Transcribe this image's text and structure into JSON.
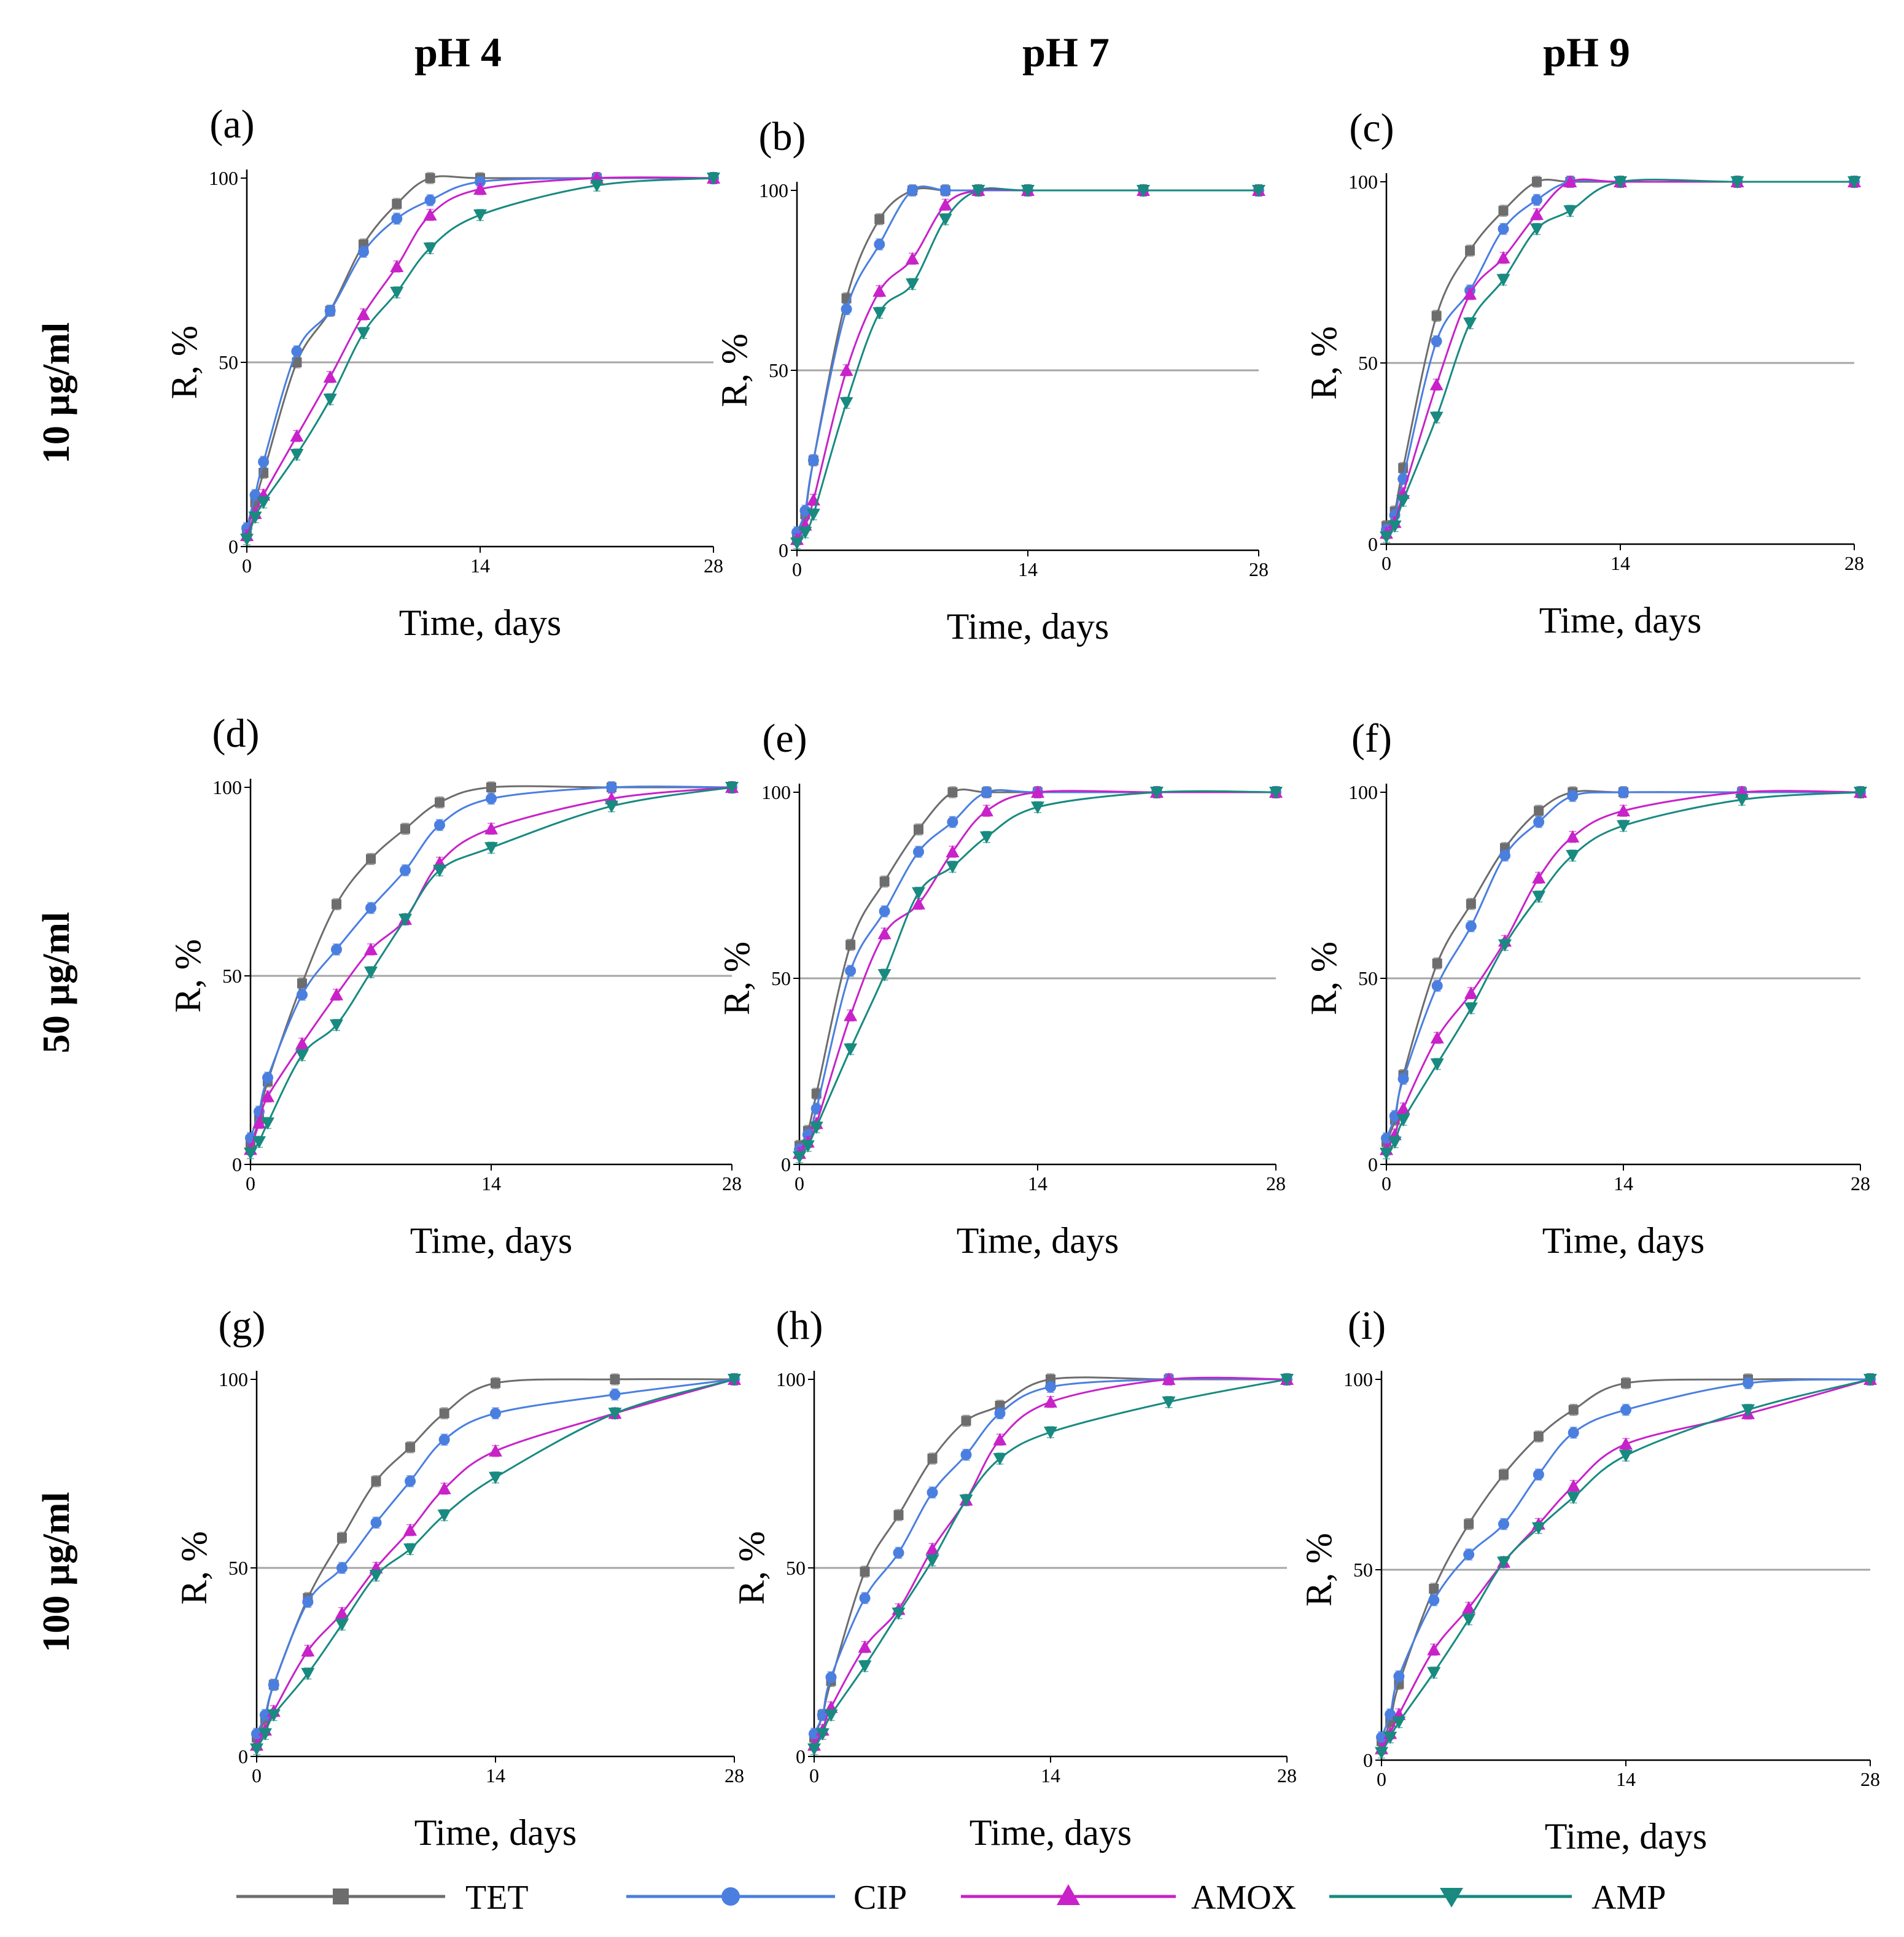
{
  "figure": {
    "column_headers": [
      "pH 4",
      "pH 7",
      "pH 9"
    ],
    "row_headers": [
      "10 µg/ml",
      "50 µg/ml",
      "100 µg/ml"
    ]
  },
  "legend": [
    "TET",
    "CIP",
    "AMOX",
    "AMP"
  ],
  "colors": {
    "TET": "#6d6d6d",
    "CIP": "#4a7fe0",
    "AMOX": "#c822c8",
    "AMP": "#188a80",
    "reference_line": "#a6a6a6"
  },
  "chart_data": [
    {
      "panel": "(a)",
      "type": "line",
      "xlabel": "Time, days",
      "ylabel": "R, %",
      "xlim": [
        0,
        28
      ],
      "ylim": [
        0,
        100
      ],
      "xticks": [
        "0",
        "14",
        "28"
      ],
      "yticks": [
        "0",
        "50",
        "100"
      ],
      "reference_y": 50,
      "x": [
        0,
        0.5,
        1,
        3,
        5,
        7,
        9,
        11,
        14,
        21,
        28
      ],
      "series": [
        {
          "name": "TET",
          "values": [
            4,
            12,
            20,
            50,
            64,
            82,
            93,
            100,
            100,
            100,
            100
          ]
        },
        {
          "name": "CIP",
          "values": [
            5,
            14,
            23,
            53,
            64,
            80,
            89,
            94,
            99,
            100,
            100
          ]
        },
        {
          "name": "AMOX",
          "values": [
            3,
            9,
            14,
            30,
            46,
            63,
            76,
            90,
            97,
            100,
            100
          ]
        },
        {
          "name": "AMP",
          "values": [
            2,
            8,
            12,
            25,
            40,
            58,
            69,
            81,
            90,
            98,
            100
          ]
        }
      ]
    },
    {
      "panel": "(b)",
      "type": "line",
      "xlabel": "Time, days",
      "ylabel": "R, %",
      "xlim": [
        0,
        28
      ],
      "ylim": [
        0,
        100
      ],
      "xticks": [
        "0",
        "14",
        "28"
      ],
      "yticks": [
        "0",
        "50",
        "100"
      ],
      "reference_y": 50,
      "x": [
        0,
        0.5,
        1,
        3,
        5,
        7,
        9,
        11,
        14,
        21,
        28
      ],
      "series": [
        {
          "name": "TET",
          "values": [
            4,
            10,
            25,
            70,
            92,
            100,
            100,
            100,
            100,
            100,
            100
          ]
        },
        {
          "name": "CIP",
          "values": [
            5,
            11,
            25,
            67,
            85,
            100,
            100,
            100,
            100,
            100,
            100
          ]
        },
        {
          "name": "AMOX",
          "values": [
            3,
            7,
            14,
            50,
            72,
            81,
            96,
            100,
            100,
            100,
            100
          ]
        },
        {
          "name": "AMP",
          "values": [
            2,
            5,
            10,
            41,
            66,
            74,
            92,
            100,
            100,
            100,
            100
          ]
        }
      ]
    },
    {
      "panel": "(c)",
      "type": "line",
      "xlabel": "Time, days",
      "ylabel": "R, %",
      "xlim": [
        0,
        28
      ],
      "ylim": [
        0,
        100
      ],
      "xticks": [
        "0",
        "14",
        "28"
      ],
      "yticks": [
        "0",
        "50",
        "100"
      ],
      "reference_y": 50,
      "x": [
        0,
        0.5,
        1,
        3,
        5,
        7,
        9,
        11,
        14,
        21,
        28
      ],
      "series": [
        {
          "name": "TET",
          "values": [
            5,
            9,
            21,
            63,
            81,
            92,
            100,
            100,
            100,
            100,
            100
          ]
        },
        {
          "name": "CIP",
          "values": [
            4,
            8,
            18,
            56,
            70,
            87,
            95,
            100,
            100,
            100,
            100
          ]
        },
        {
          "name": "AMOX",
          "values": [
            3,
            6,
            14,
            44,
            69,
            79,
            91,
            100,
            100,
            100,
            100
          ]
        },
        {
          "name": "AMP",
          "values": [
            2,
            5,
            12,
            35,
            61,
            73,
            87,
            92,
            100,
            100,
            100
          ]
        }
      ]
    },
    {
      "panel": "(d)",
      "type": "line",
      "xlabel": "Time, days",
      "ylabel": "R, %",
      "xlim": [
        0,
        28
      ],
      "ylim": [
        0,
        100
      ],
      "xticks": [
        "0",
        "14",
        "28"
      ],
      "yticks": [
        "0",
        "50",
        "100"
      ],
      "reference_y": 50,
      "x": [
        0,
        0.5,
        1,
        3,
        5,
        7,
        9,
        11,
        14,
        21,
        28
      ],
      "series": [
        {
          "name": "TET",
          "values": [
            5,
            12,
            22,
            48,
            69,
            81,
            89,
            96,
            100,
            100,
            100
          ]
        },
        {
          "name": "CIP",
          "values": [
            7,
            14,
            23,
            45,
            57,
            68,
            78,
            90,
            97,
            100,
            100
          ]
        },
        {
          "name": "AMOX",
          "values": [
            4,
            11,
            18,
            32,
            45,
            57,
            65,
            80,
            89,
            97,
            100
          ]
        },
        {
          "name": "AMP",
          "values": [
            3,
            6,
            11,
            29,
            37,
            51,
            65,
            78,
            84,
            95,
            100
          ]
        }
      ]
    },
    {
      "panel": "(e)",
      "type": "line",
      "xlabel": "Time, days",
      "ylabel": "R, %",
      "xlim": [
        0,
        28
      ],
      "ylim": [
        0,
        100
      ],
      "xticks": [
        "0",
        "14",
        "28"
      ],
      "yticks": [
        "0",
        "50",
        "100"
      ],
      "reference_y": 50,
      "x": [
        0,
        0.5,
        1,
        3,
        5,
        7,
        9,
        11,
        14,
        21,
        28
      ],
      "series": [
        {
          "name": "TET",
          "values": [
            5,
            9,
            19,
            59,
            76,
            90,
            100,
            100,
            100,
            100,
            100
          ]
        },
        {
          "name": "CIP",
          "values": [
            4,
            8,
            15,
            52,
            68,
            84,
            92,
            100,
            100,
            100,
            100
          ]
        },
        {
          "name": "AMOX",
          "values": [
            3,
            6,
            11,
            40,
            62,
            70,
            84,
            95,
            100,
            100,
            100
          ]
        },
        {
          "name": "AMP",
          "values": [
            2,
            5,
            10,
            31,
            51,
            73,
            80,
            88,
            96,
            100,
            100
          ]
        }
      ]
    },
    {
      "panel": "(f)",
      "type": "line",
      "xlabel": "Time, days",
      "ylabel": "R, %",
      "xlim": [
        0,
        28
      ],
      "ylim": [
        0,
        100
      ],
      "xticks": [
        "0",
        "14",
        "28"
      ],
      "yticks": [
        "0",
        "50",
        "100"
      ],
      "reference_y": 50,
      "x": [
        0,
        0.5,
        1,
        3,
        5,
        7,
        9,
        11,
        14,
        21,
        28
      ],
      "series": [
        {
          "name": "TET",
          "values": [
            6,
            12,
            24,
            54,
            70,
            85,
            95,
            100,
            100,
            100,
            100
          ]
        },
        {
          "name": "CIP",
          "values": [
            7,
            13,
            23,
            48,
            64,
            83,
            92,
            99,
            100,
            100,
            100
          ]
        },
        {
          "name": "AMOX",
          "values": [
            4,
            8,
            15,
            34,
            46,
            60,
            77,
            88,
            95,
            100,
            100
          ]
        },
        {
          "name": "AMP",
          "values": [
            3,
            6,
            12,
            27,
            42,
            59,
            72,
            83,
            91,
            98,
            100
          ]
        }
      ]
    },
    {
      "panel": "(g)",
      "type": "line",
      "xlabel": "Time, days",
      "ylabel": "R, %",
      "xlim": [
        0,
        28
      ],
      "ylim": [
        0,
        100
      ],
      "xticks": [
        "0",
        "14",
        "28"
      ],
      "yticks": [
        "0",
        "50",
        "100"
      ],
      "reference_y": 50,
      "x": [
        0,
        0.5,
        1,
        3,
        5,
        7,
        9,
        11,
        14,
        21,
        28
      ],
      "series": [
        {
          "name": "TET",
          "values": [
            5,
            10,
            19,
            42,
            58,
            73,
            82,
            91,
            99,
            100,
            100
          ]
        },
        {
          "name": "CIP",
          "values": [
            6,
            11,
            19,
            41,
            50,
            62,
            73,
            84,
            91,
            96,
            100
          ]
        },
        {
          "name": "AMOX",
          "values": [
            3,
            7,
            12,
            28,
            38,
            50,
            60,
            71,
            81,
            91,
            100
          ]
        },
        {
          "name": "AMP",
          "values": [
            2,
            6,
            11,
            22,
            35,
            48,
            55,
            64,
            74,
            91,
            100
          ]
        }
      ]
    },
    {
      "panel": "(h)",
      "type": "line",
      "xlabel": "Time, days",
      "ylabel": "R, %",
      "xlim": [
        0,
        28
      ],
      "ylim": [
        0,
        100
      ],
      "xticks": [
        "0",
        "14",
        "28"
      ],
      "yticks": [
        "0",
        "50",
        "100"
      ],
      "reference_y": 50,
      "x": [
        0,
        0.5,
        1,
        3,
        5,
        7,
        9,
        11,
        14,
        21,
        28
      ],
      "series": [
        {
          "name": "TET",
          "values": [
            5,
            11,
            20,
            49,
            64,
            79,
            89,
            93,
            100,
            100,
            100
          ]
        },
        {
          "name": "CIP",
          "values": [
            6,
            11,
            21,
            42,
            54,
            70,
            80,
            91,
            98,
            100,
            100
          ]
        },
        {
          "name": "AMOX",
          "values": [
            3,
            7,
            13,
            29,
            39,
            55,
            68,
            84,
            94,
            100,
            100
          ]
        },
        {
          "name": "AMP",
          "values": [
            2,
            6,
            11,
            24,
            38,
            52,
            68,
            79,
            86,
            94,
            100
          ]
        }
      ]
    },
    {
      "panel": "(i)",
      "type": "line",
      "xlabel": "Time, days",
      "ylabel": "R, %",
      "xlim": [
        0,
        28
      ],
      "ylim": [
        0,
        100
      ],
      "xticks": [
        "0",
        "14",
        "28"
      ],
      "yticks": [
        "0",
        "50",
        "100"
      ],
      "reference_y": 50,
      "x": [
        0,
        0.5,
        1,
        3,
        5,
        7,
        9,
        11,
        14,
        21,
        28
      ],
      "series": [
        {
          "name": "TET",
          "values": [
            5,
            10,
            20,
            45,
            62,
            75,
            85,
            92,
            99,
            100,
            100
          ]
        },
        {
          "name": "CIP",
          "values": [
            6,
            12,
            22,
            42,
            54,
            62,
            75,
            86,
            92,
            99,
            100
          ]
        },
        {
          "name": "AMOX",
          "values": [
            3,
            7,
            12,
            29,
            40,
            52,
            62,
            72,
            83,
            91,
            100
          ]
        },
        {
          "name": "AMP",
          "values": [
            2,
            6,
            10,
            23,
            37,
            52,
            61,
            69,
            80,
            92,
            100
          ]
        }
      ]
    }
  ]
}
